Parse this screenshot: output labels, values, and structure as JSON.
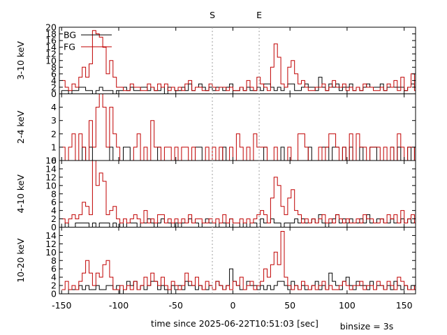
{
  "chart_data": {
    "type": "line",
    "step": true,
    "xlabel": "time since 2025-06-22T10:51:03 [sec]",
    "binsize_label": "binsize = 3s",
    "xlim": [
      -152,
      160
    ],
    "x_ticks": [
      -150,
      -100,
      -50,
      0,
      50,
      100,
      150
    ],
    "markers": [
      {
        "label": "S",
        "x": -18,
        "line_color": "#a0a0a0"
      },
      {
        "label": "E",
        "x": 23,
        "line_color": "#a0a0a0"
      }
    ],
    "legend": [
      {
        "name": "BG",
        "color": "#000000"
      },
      {
        "name": "FG",
        "color": "#c00000"
      }
    ],
    "panels": [
      {
        "ylabel": "3-10 keV",
        "ylim": [
          0,
          20
        ],
        "yticks": [
          0,
          2,
          4,
          6,
          8,
          10,
          12,
          14,
          16,
          18,
          20
        ],
        "legend": true,
        "series": [
          {
            "name": "BG",
            "color": "#000000",
            "x0": -150,
            "step": 3,
            "values": [
              1,
              1,
              0,
              1,
              1,
              2,
              2,
              1,
              1,
              0,
              1,
              2,
              1,
              1,
              1,
              0,
              1,
              1,
              2,
              1,
              2,
              1,
              1,
              2,
              2,
              1,
              2,
              1,
              1,
              2,
              0,
              2,
              2,
              1,
              1,
              2,
              1,
              3,
              1,
              2,
              3,
              2,
              1,
              2,
              1,
              2,
              2,
              1,
              2,
              3,
              1,
              1,
              2,
              1,
              2,
              1,
              1,
              2,
              1,
              3,
              3,
              2,
              1,
              2,
              1,
              2,
              3,
              3,
              1,
              1,
              2,
              3,
              2,
              2,
              1,
              5,
              2,
              1,
              3,
              2,
              3,
              1,
              2,
              2,
              3,
              1,
              2,
              1,
              2,
              3,
              2,
              2,
              2,
              3,
              1,
              2,
              2,
              2,
              2,
              2,
              1,
              2,
              3,
              2,
              2,
              1,
              2,
              2,
              2
            ]
          },
          {
            "name": "FG",
            "color": "#c00000",
            "x0": -150,
            "step": 3,
            "values": [
              4,
              2,
              1,
              3,
              2,
              5,
              8,
              5,
              9,
              19,
              18,
              17,
              14,
              6,
              10,
              5,
              2,
              2,
              1,
              1,
              3,
              2,
              2,
              1,
              1,
              3,
              2,
              1,
              3,
              2,
              3,
              1,
              2,
              1,
              2,
              1,
              3,
              4,
              1,
              2,
              2,
              1,
              1,
              3,
              2,
              1,
              2,
              2,
              1,
              2,
              1,
              1,
              2,
              1,
              4,
              2,
              1,
              5,
              3,
              2,
              1,
              8,
              15,
              11,
              3,
              2,
              8,
              10,
              6,
              3,
              4,
              2,
              1,
              1,
              2,
              2,
              3,
              1,
              2,
              4,
              2,
              2,
              3,
              1,
              2,
              1,
              2,
              1,
              3,
              2,
              2,
              1,
              1,
              2,
              1,
              3,
              2,
              4,
              1,
              5,
              1,
              2,
              6,
              1,
              5,
              2,
              3,
              1,
              2,
              3,
              2,
              1,
              3,
              2,
              1,
              2,
              3,
              2,
              1
            ]
          }
        ]
      },
      {
        "ylabel": "2-4 keV",
        "ylim": [
          0,
          5
        ],
        "yticks": [
          0,
          1,
          2,
          3,
          4
        ],
        "series": [
          {
            "name": "BG",
            "color": "#000000",
            "x0": -150,
            "step": 3,
            "values": [
              0,
              0,
              0,
              0,
              0,
              0,
              1,
              0,
              1,
              0,
              0,
              0,
              0,
              0,
              1,
              0,
              0,
              0,
              1,
              1,
              0,
              0,
              0,
              0,
              0,
              0,
              0,
              0,
              1,
              0,
              0,
              0,
              0,
              0,
              0,
              0,
              0,
              0,
              0,
              1,
              1,
              0,
              0,
              0,
              0,
              0,
              0,
              1,
              0,
              0,
              0,
              0,
              0,
              0,
              0,
              0,
              0,
              0,
              0,
              1,
              0,
              0,
              0,
              0,
              1,
              0,
              0,
              0,
              0,
              0,
              0,
              0,
              1,
              0,
              0,
              0,
              1,
              1,
              0,
              1,
              1,
              0,
              1,
              0,
              1,
              0,
              0,
              1,
              0,
              0,
              1,
              1,
              0,
              0,
              0,
              0,
              1,
              0,
              1,
              0,
              0,
              1,
              0,
              1,
              0,
              0,
              1,
              0,
              1,
              0,
              0,
              0,
              0,
              0,
              0,
              0,
              0,
              0,
              1,
              0
            ]
          },
          {
            "name": "FG",
            "color": "#c00000",
            "x0": -150,
            "step": 3,
            "values": [
              1,
              0,
              1,
              2,
              0,
              2,
              1,
              0,
              3,
              1,
              4,
              5,
              4,
              1,
              4,
              2,
              1,
              0,
              0,
              0,
              0,
              1,
              2,
              0,
              1,
              0,
              3,
              1,
              1,
              0,
              1,
              1,
              0,
              1,
              0,
              1,
              1,
              0,
              1,
              0,
              0,
              0,
              1,
              0,
              1,
              0,
              1,
              0,
              0,
              1,
              0,
              2,
              1,
              0,
              1,
              0,
              2,
              1,
              1,
              1,
              0,
              0,
              1,
              0,
              0,
              0,
              1,
              0,
              0,
              2,
              2,
              1,
              0,
              0,
              0,
              1,
              0,
              1,
              2,
              2,
              1,
              0,
              1,
              0,
              2,
              0,
              2,
              1,
              1,
              0,
              1,
              1,
              1,
              0,
              1,
              0,
              1,
              0,
              2,
              1,
              0,
              1,
              1,
              0,
              2,
              0,
              0,
              1,
              1,
              1,
              0,
              1,
              0,
              1,
              0,
              0,
              1,
              0,
              1,
              0
            ]
          }
        ]
      },
      {
        "ylabel": "4-10 keV",
        "ylim": [
          0,
          16
        ],
        "yticks": [
          0,
          2,
          4,
          6,
          8,
          10,
          12,
          14,
          16
        ],
        "series": [
          {
            "name": "BG",
            "color": "#000000",
            "x0": -150,
            "step": 3,
            "values": [
              0,
              1,
              0,
              0,
              1,
              1,
              1,
              1,
              0,
              1,
              0,
              1,
              1,
              1,
              0,
              1,
              0,
              1,
              0,
              1,
              1,
              1,
              0,
              1,
              1,
              2,
              1,
              0,
              1,
              2,
              1,
              1,
              0,
              1,
              0,
              1,
              1,
              2,
              1,
              1,
              0,
              1,
              2,
              1,
              1,
              0,
              1,
              1,
              0,
              2,
              1,
              1,
              0,
              1,
              0,
              1,
              1,
              0,
              2,
              1,
              1,
              2,
              1,
              1,
              0,
              1,
              1,
              1,
              2,
              1,
              2,
              1,
              1,
              2,
              1,
              3,
              1,
              0,
              1,
              2,
              3,
              1,
              2,
              1,
              2,
              1,
              1,
              2,
              1,
              3,
              1,
              1,
              2,
              2,
              1,
              1,
              2,
              1,
              1,
              2,
              1,
              2,
              1,
              1,
              1,
              0,
              2,
              1,
              1,
              1,
              2,
              1,
              1,
              2,
              1,
              1,
              0,
              1,
              1,
              1
            ]
          },
          {
            "name": "FG",
            "color": "#c00000",
            "x0": -150,
            "step": 3,
            "values": [
              2,
              1,
              2,
              3,
              2,
              3,
              6,
              5,
              3,
              16,
              10,
              13,
              11,
              3,
              4,
              5,
              2,
              1,
              2,
              1,
              2,
              3,
              2,
              1,
              4,
              1,
              2,
              1,
              3,
              3,
              1,
              2,
              1,
              2,
              1,
              2,
              1,
              3,
              1,
              2,
              2,
              1,
              1,
              2,
              1,
              2,
              1,
              3,
              1,
              2,
              1,
              1,
              2,
              1,
              2,
              1,
              2,
              3,
              4,
              3,
              1,
              7,
              12,
              10,
              5,
              3,
              7,
              9,
              4,
              3,
              1,
              2,
              1,
              2,
              1,
              2,
              3,
              1,
              2,
              1,
              3,
              2,
              1,
              2,
              1,
              1,
              2,
              1,
              3,
              2,
              2,
              1,
              1,
              2,
              1,
              3,
              2,
              3,
              1,
              4,
              1,
              2,
              3,
              1,
              2,
              1,
              3,
              2,
              1,
              3,
              2,
              1,
              2,
              2,
              1,
              2,
              3,
              2,
              2,
              1
            ]
          }
        ]
      },
      {
        "ylabel": "10-20 keV",
        "ylim": [
          0,
          16
        ],
        "yticks": [
          0,
          2,
          4,
          6,
          8,
          10,
          12,
          14
        ],
        "series": [
          {
            "name": "BG",
            "color": "#000000",
            "x0": -150,
            "step": 3,
            "values": [
              0,
              0,
              1,
              1,
              1,
              2,
              1,
              2,
              1,
              1,
              2,
              1,
              1,
              2,
              2,
              1,
              2,
              0,
              1,
              3,
              2,
              3,
              1,
              2,
              1,
              2,
              3,
              3,
              1,
              2,
              1,
              0,
              2,
              1,
              2,
              1,
              3,
              2,
              2,
              1,
              2,
              1,
              1,
              2,
              1,
              3,
              2,
              1,
              2,
              6,
              3,
              2,
              1,
              1,
              3,
              2,
              2,
              1,
              2,
              1,
              2,
              1,
              2,
              3,
              3,
              2,
              1,
              3,
              2,
              1,
              2,
              1,
              1,
              2,
              3,
              1,
              2,
              1,
              5,
              3,
              2,
              1,
              3,
              4,
              2,
              1,
              3,
              2,
              2,
              1,
              3,
              1,
              2,
              2,
              1,
              2,
              1,
              3,
              2,
              1,
              2,
              1,
              2,
              1,
              1,
              2,
              1,
              2,
              2,
              1,
              1,
              2,
              1,
              2,
              1,
              2,
              1,
              1,
              2,
              1
            ]
          },
          {
            "name": "FG",
            "color": "#c00000",
            "x0": -150,
            "step": 3,
            "values": [
              1,
              3,
              1,
              2,
              1,
              3,
              5,
              8,
              5,
              2,
              5,
              4,
              7,
              8,
              4,
              1,
              1,
              2,
              1,
              2,
              1,
              3,
              1,
              2,
              4,
              2,
              5,
              3,
              2,
              4,
              2,
              1,
              3,
              2,
              1,
              2,
              5,
              3,
              2,
              4,
              2,
              1,
              3,
              2,
              1,
              3,
              2,
              1,
              2,
              1,
              3,
              2,
              4,
              1,
              2,
              3,
              1,
              2,
              3,
              6,
              4,
              7,
              10,
              7,
              15,
              4,
              2,
              1,
              2,
              1,
              3,
              2,
              1,
              2,
              1,
              2,
              3,
              1,
              2,
              1,
              1,
              2,
              3,
              2,
              1,
              2,
              2,
              3,
              1,
              2,
              2,
              1,
              3,
              2,
              1,
              3,
              2,
              1,
              4,
              3,
              2,
              1,
              1,
              2,
              1,
              2,
              1,
              3,
              2,
              4,
              5,
              3,
              1,
              2,
              1,
              3,
              1,
              2,
              1,
              2
            ]
          }
        ]
      }
    ]
  }
}
